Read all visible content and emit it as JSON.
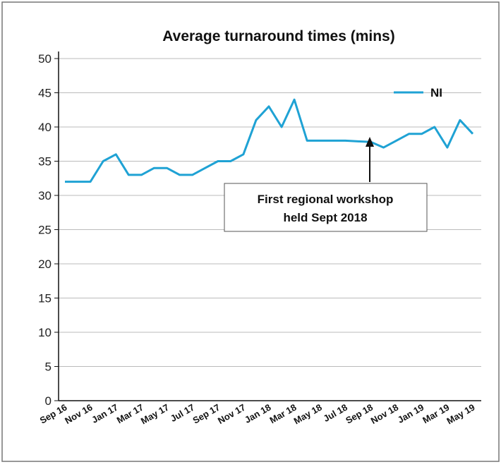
{
  "chart_data": {
    "type": "line",
    "title": "Average turnaround times (mins)",
    "categories": [
      "Sep 16",
      null,
      "Nov 16",
      null,
      "Jan 17",
      null,
      "Mar 17",
      null,
      "May 17",
      null,
      "Jul 17",
      null,
      "Sep 17",
      null,
      "Nov 17",
      null,
      "Jan 18",
      null,
      "Mar 18",
      null,
      "May 18",
      null,
      "Jul 18",
      null,
      "Sep 18",
      null,
      "Nov 18",
      null,
      "Jan 19",
      null,
      "Mar 19",
      null,
      "May 19"
    ],
    "series": [
      {
        "name": "NI",
        "color": "#1fa2d4",
        "values": [
          32,
          32,
          32,
          35,
          36,
          33,
          33,
          34,
          34,
          33,
          33,
          34,
          35,
          35,
          36,
          41,
          43,
          40,
          44,
          38,
          38,
          38,
          38,
          37.9,
          37.8,
          37,
          38,
          39,
          39,
          40,
          37,
          41,
          39
        ]
      }
    ],
    "ylim": [
      0,
      50
    ],
    "yticks": [
      0,
      5,
      10,
      15,
      20,
      25,
      30,
      35,
      40,
      45,
      50
    ],
    "grid": true,
    "legend": "top-right",
    "annotation": [
      "First regional workshop",
      "held Sept 2018"
    ]
  }
}
